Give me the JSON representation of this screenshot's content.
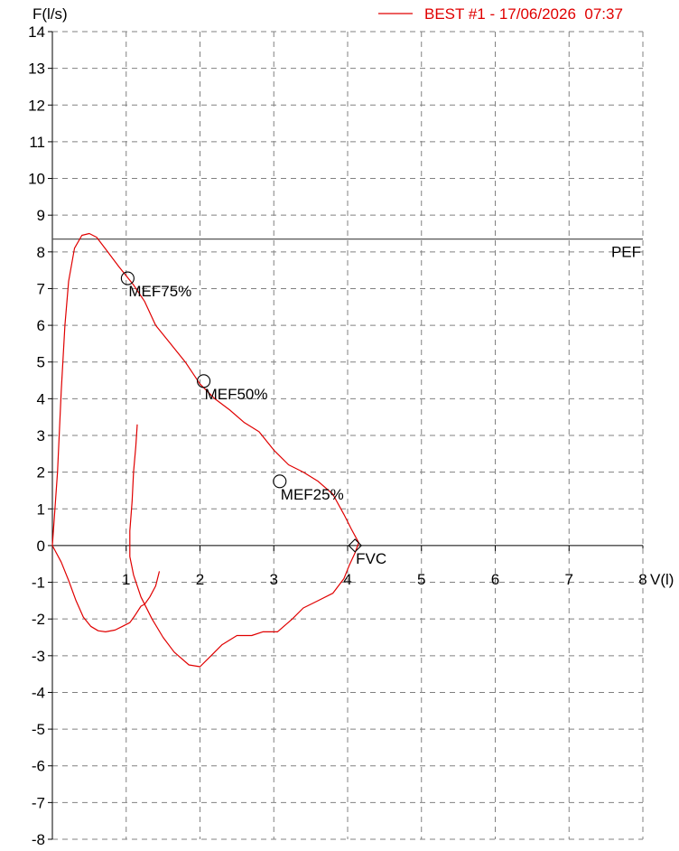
{
  "chart_data": {
    "type": "line",
    "title": "",
    "xlabel": "V(l)",
    "ylabel": "F(l/s)",
    "xlim": [
      0,
      8
    ],
    "ylim": [
      -8,
      14
    ],
    "x_ticks": [
      1,
      2,
      3,
      4,
      5,
      6,
      7,
      8
    ],
    "y_ticks": [
      14,
      13,
      12,
      11,
      10,
      9,
      8,
      7,
      6,
      5,
      4,
      3,
      2,
      1,
      0,
      -1,
      -2,
      -3,
      -4,
      -5,
      -6,
      -7,
      -8
    ],
    "grid": true,
    "legend": {
      "placement": "top-right",
      "label": "BEST #1 - 17/06/2026  07:37"
    },
    "colors": {
      "series": "#e00000",
      "axes": "#000000",
      "grid": "#808080",
      "pef_line": "#555555"
    },
    "pef": {
      "label": "PEF",
      "value": 8.35
    },
    "markers": [
      {
        "label": "MEF75%",
        "x": 1.02,
        "y": 7.28,
        "shape": "circle"
      },
      {
        "label": "MEF50%",
        "x": 2.05,
        "y": 4.48,
        "shape": "circle"
      },
      {
        "label": "MEF25%",
        "x": 3.08,
        "y": 1.75,
        "shape": "circle"
      },
      {
        "label": "FVC",
        "x": 4.1,
        "y": 0.0,
        "shape": "diamond"
      }
    ],
    "series": [
      {
        "name": "BEST #1 - 17/06/2026  07:37",
        "segments": [
          [
            [
              0.0,
              0.0
            ],
            [
              0.07,
              2.0
            ],
            [
              0.12,
              4.2
            ],
            [
              0.17,
              6.0
            ],
            [
              0.22,
              7.2
            ],
            [
              0.3,
              8.1
            ],
            [
              0.4,
              8.45
            ],
            [
              0.5,
              8.5
            ],
            [
              0.6,
              8.4
            ],
            [
              0.75,
              8.0
            ],
            [
              0.9,
              7.6
            ],
            [
              1.1,
              7.1
            ],
            [
              1.25,
              6.65
            ],
            [
              1.4,
              6.0
            ],
            [
              1.6,
              5.5
            ],
            [
              1.8,
              5.0
            ],
            [
              2.0,
              4.4
            ],
            [
              2.2,
              4.0
            ],
            [
              2.4,
              3.7
            ],
            [
              2.6,
              3.35
            ],
            [
              2.8,
              3.1
            ],
            [
              3.0,
              2.6
            ],
            [
              3.2,
              2.2
            ],
            [
              3.4,
              2.0
            ],
            [
              3.6,
              1.75
            ],
            [
              3.8,
              1.4
            ],
            [
              3.95,
              0.85
            ],
            [
              4.05,
              0.45
            ],
            [
              4.15,
              0.08
            ],
            [
              4.1,
              -0.2
            ],
            [
              4.02,
              -0.55
            ],
            [
              3.95,
              -0.9
            ],
            [
              3.8,
              -1.3
            ],
            [
              3.6,
              -1.5
            ],
            [
              3.4,
              -1.7
            ],
            [
              3.25,
              -2.0
            ],
            [
              3.05,
              -2.35
            ],
            [
              2.85,
              -2.35
            ],
            [
              2.7,
              -2.45
            ],
            [
              2.5,
              -2.45
            ],
            [
              2.3,
              -2.7
            ],
            [
              2.15,
              -3.0
            ],
            [
              2.0,
              -3.3
            ],
            [
              1.85,
              -3.25
            ],
            [
              1.65,
              -2.9
            ],
            [
              1.5,
              -2.5
            ],
            [
              1.35,
              -2.0
            ],
            [
              1.2,
              -1.4
            ],
            [
              1.1,
              -0.8
            ],
            [
              1.05,
              -0.3
            ],
            [
              1.05,
              0.4
            ],
            [
              1.08,
              1.2
            ],
            [
              1.1,
              2.0
            ],
            [
              1.13,
              2.7
            ],
            [
              1.15,
              3.3
            ]
          ],
          [
            [
              0.0,
              0.0
            ],
            [
              0.12,
              -0.45
            ],
            [
              0.22,
              -0.95
            ],
            [
              0.32,
              -1.5
            ],
            [
              0.42,
              -1.95
            ],
            [
              0.52,
              -2.2
            ],
            [
              0.62,
              -2.32
            ],
            [
              0.72,
              -2.35
            ],
            [
              0.85,
              -2.3
            ],
            [
              0.95,
              -2.2
            ],
            [
              1.05,
              -2.1
            ],
            [
              1.12,
              -1.9
            ],
            [
              1.2,
              -1.65
            ],
            [
              1.25,
              -1.6
            ],
            [
              1.32,
              -1.4
            ],
            [
              1.4,
              -1.1
            ],
            [
              1.45,
              -0.7
            ]
          ]
        ]
      }
    ]
  }
}
